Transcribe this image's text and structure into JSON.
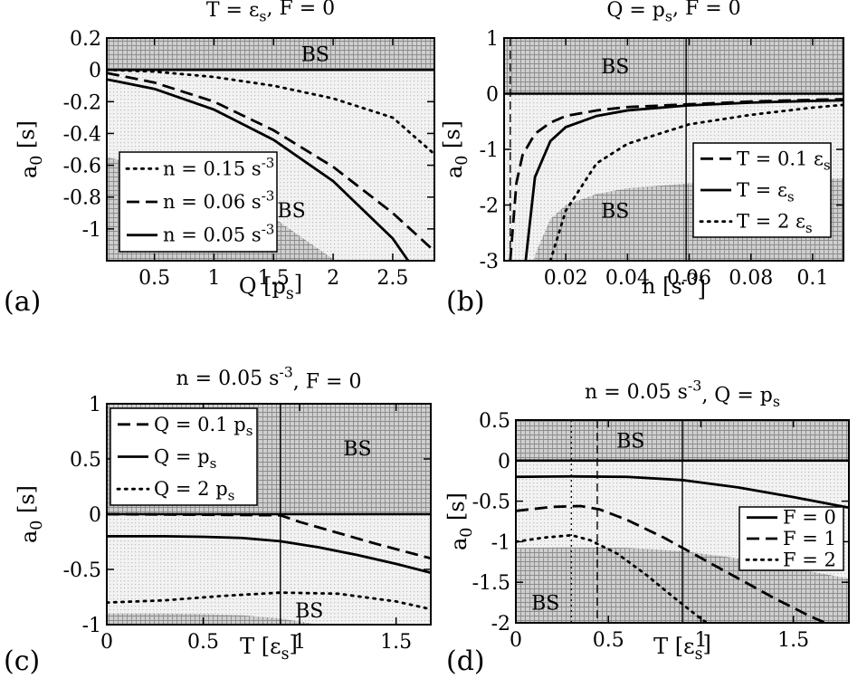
{
  "chart_data": [
    {
      "id": "a",
      "type": "line",
      "panel_label": "(a)",
      "title": "T = ε_s, F = 0",
      "xlabel": "Q [p_s]",
      "ylabel": "a_0 [s]",
      "xlim": [
        0.1,
        2.85
      ],
      "ylim": [
        -1.2,
        0.2
      ],
      "xticks": [
        0.5,
        1,
        1.5,
        2,
        2.5
      ],
      "xtick_labels": [
        "0.5",
        "1",
        "1.5",
        "2",
        "2.5"
      ],
      "yticks": [
        0.2,
        0,
        -0.2,
        -0.4,
        -0.6,
        -0.8,
        -1
      ],
      "ytick_labels": [
        "0.2",
        "0",
        "-0.2",
        "-0.4",
        "-0.6",
        "-0.8",
        "-1"
      ],
      "bs_labels": [
        {
          "text": "BS",
          "x": 1.85,
          "y": 0.1
        },
        {
          "text": "BS",
          "x": 1.65,
          "y": -0.88
        }
      ],
      "legend": {
        "position": "lower-left"
      },
      "series": [
        {
          "name": "n = 0.15 s^-3",
          "style": "dotted",
          "x": [
            0.1,
            0.5,
            1,
            1.5,
            2,
            2.5,
            2.85
          ],
          "y": [
            0,
            -0.011,
            -0.045,
            -0.1,
            -0.18,
            -0.3,
            -0.53
          ]
        },
        {
          "name": "n = 0.06 s^-3",
          "style": "dashed",
          "x": [
            0.1,
            0.5,
            1,
            1.5,
            2,
            2.5,
            2.85
          ],
          "y": [
            -0.02,
            -0.08,
            -0.2,
            -0.38,
            -0.61,
            -0.9,
            -1.14
          ]
        },
        {
          "name": "n = 0.05 s^-3",
          "style": "solid",
          "x": [
            0.1,
            0.5,
            1,
            1.5,
            2,
            2.5,
            2.63
          ],
          "y": [
            -0.06,
            -0.12,
            -0.25,
            -0.44,
            -0.7,
            -1.06,
            -1.2
          ]
        }
      ],
      "hlines": [
        0
      ]
    },
    {
      "id": "b",
      "type": "line",
      "panel_label": "(b)",
      "title": "Q = p_s, F = 0",
      "xlabel": "n [s^-3]",
      "ylabel": "a_0 [s]",
      "xlim": [
        0,
        0.11
      ],
      "ylim": [
        -3,
        1
      ],
      "xticks": [
        0.02,
        0.04,
        0.06,
        0.08,
        0.1
      ],
      "xtick_labels": [
        "0.02",
        "0.04",
        "0.06",
        "0.08",
        "0.1"
      ],
      "yticks": [
        1,
        0,
        -1,
        -2,
        -3
      ],
      "ytick_labels": [
        "1",
        "0",
        "-1",
        "-2",
        "-3"
      ],
      "bs_labels": [
        {
          "text": "BS",
          "x": 0.036,
          "y": 0.5
        },
        {
          "text": "BS",
          "x": 0.036,
          "y": -2.1
        }
      ],
      "legend": {
        "position": "lower-right"
      },
      "series": [
        {
          "name": "T = 0.1 ε_s",
          "style": "dashed",
          "x": [
            0.002,
            0.004,
            0.006,
            0.01,
            0.015,
            0.02,
            0.03,
            0.04,
            0.06,
            0.08,
            0.1,
            0.11
          ],
          "y": [
            -3,
            -1.6,
            -1.1,
            -0.72,
            -0.52,
            -0.4,
            -0.3,
            -0.24,
            -0.19,
            -0.14,
            -0.11,
            -0.1
          ]
        },
        {
          "name": "T = ε_s",
          "style": "solid",
          "x": [
            0.007,
            0.01,
            0.015,
            0.02,
            0.03,
            0.04,
            0.06,
            0.08,
            0.1,
            0.11
          ],
          "y": [
            -3,
            -1.5,
            -0.85,
            -0.6,
            -0.4,
            -0.3,
            -0.21,
            -0.16,
            -0.13,
            -0.12
          ]
        },
        {
          "name": "T = 2 ε_s",
          "style": "dotted",
          "x": [
            0.015,
            0.02,
            0.03,
            0.04,
            0.06,
            0.08,
            0.1,
            0.11
          ],
          "y": [
            -3,
            -2.1,
            -1.25,
            -0.9,
            -0.55,
            -0.38,
            -0.25,
            -0.2
          ]
        }
      ],
      "hlines": [
        0
      ],
      "vlines": [
        {
          "x": 0.059,
          "style": "solid"
        },
        {
          "x": 0.002,
          "style": "dashed"
        }
      ]
    },
    {
      "id": "c",
      "type": "line",
      "panel_label": "(c)",
      "title": "n = 0.05 s^-3, F = 0",
      "xlabel": "T [ε_s]",
      "ylabel": "a_0 [s]",
      "xlim": [
        0,
        1.68
      ],
      "ylim": [
        -1,
        1
      ],
      "xticks": [
        0,
        0.5,
        1,
        1.5
      ],
      "xtick_labels": [
        "0",
        "0.5",
        "1",
        "1.5"
      ],
      "yticks": [
        1,
        0.5,
        0,
        -0.5,
        -1
      ],
      "ytick_labels": [
        "1",
        "0.5",
        "0",
        "-0.5",
        "-1"
      ],
      "bs_labels": [
        {
          "text": "BS",
          "x": 1.3,
          "y": 0.6
        },
        {
          "text": "BS",
          "x": 1.05,
          "y": -0.87
        }
      ],
      "legend": {
        "position": "upper-left"
      },
      "series": [
        {
          "name": "Q = 0.1 p_s",
          "style": "dashed",
          "x": [
            0,
            0.5,
            0.9,
            1,
            1.2,
            1.4,
            1.68
          ],
          "y": [
            0,
            -0.005,
            -0.01,
            -0.07,
            -0.17,
            -0.27,
            -0.4
          ]
        },
        {
          "name": "Q = p_s",
          "style": "solid",
          "x": [
            0,
            0.3,
            0.5,
            0.7,
            0.9,
            1.1,
            1.3,
            1.5,
            1.68
          ],
          "y": [
            -0.2,
            -0.2,
            -0.205,
            -0.215,
            -0.245,
            -0.3,
            -0.37,
            -0.45,
            -0.53
          ]
        },
        {
          "name": "Q = 2 p_s",
          "style": "dotted",
          "x": [
            0,
            0.3,
            0.6,
            0.9,
            1.2,
            1.5,
            1.68
          ],
          "y": [
            -0.8,
            -0.78,
            -0.74,
            -0.71,
            -0.72,
            -0.79,
            -0.86
          ]
        }
      ],
      "hlines": [
        0
      ],
      "vlines": [
        {
          "x": 0.9,
          "style": "solid"
        }
      ]
    },
    {
      "id": "d",
      "type": "line",
      "panel_label": "(d)",
      "title": "n = 0.05 s^-3, Q = p_s",
      "xlabel": "T [ε_s]",
      "ylabel": "a_0 [s]",
      "xlim": [
        0,
        1.8
      ],
      "ylim": [
        -2,
        0.5
      ],
      "xticks": [
        0,
        0.5,
        1,
        1.5
      ],
      "xtick_labels": [
        "0",
        "0.5",
        "1",
        "1.5"
      ],
      "yticks": [
        0.5,
        0,
        -0.5,
        -1,
        -1.5,
        -2
      ],
      "ytick_labels": [
        "0.5",
        "0",
        "-0.5",
        "-1",
        "-1.5",
        "-2"
      ],
      "bs_labels": [
        {
          "text": "BS",
          "x": 0.62,
          "y": 0.25
        },
        {
          "text": "BS",
          "x": 0.16,
          "y": -1.75
        }
      ],
      "legend": {
        "position": "right"
      },
      "series": [
        {
          "name": "F = 0",
          "style": "solid",
          "x": [
            0,
            0.3,
            0.6,
            0.9,
            1.2,
            1.5,
            1.8
          ],
          "y": [
            -0.2,
            -0.195,
            -0.2,
            -0.24,
            -0.33,
            -0.45,
            -0.58
          ]
        },
        {
          "name": "F = 1",
          "style": "dashed",
          "x": [
            0,
            0.2,
            0.35,
            0.45,
            0.6,
            0.8,
            1,
            1.2,
            1.4,
            1.6,
            1.8
          ],
          "y": [
            -0.62,
            -0.57,
            -0.56,
            -0.6,
            -0.73,
            -0.95,
            -1.2,
            -1.45,
            -1.7,
            -1.93,
            -2.12
          ]
        },
        {
          "name": "F = 2",
          "style": "dotted",
          "x": [
            0,
            0.15,
            0.3,
            0.4,
            0.55,
            0.7,
            0.85,
            1,
            1.1
          ],
          "y": [
            -1,
            -0.95,
            -0.92,
            -0.98,
            -1.15,
            -1.4,
            -1.68,
            -1.95,
            -2.1
          ]
        }
      ],
      "hlines": [
        0
      ],
      "vlines": [
        {
          "x": 0.3,
          "style": "dotted"
        },
        {
          "x": 0.44,
          "style": "dashed"
        },
        {
          "x": 0.9,
          "style": "solid"
        }
      ]
    }
  ]
}
